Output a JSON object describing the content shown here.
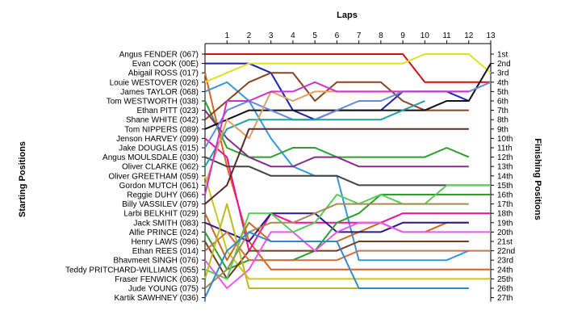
{
  "chart_data": {
    "type": "line",
    "title": "",
    "xlabel": "Laps",
    "ylabel_left": "Starting Positions",
    "ylabel_right": "Finishing Positions",
    "laps": [
      0,
      1,
      2,
      3,
      4,
      5,
      6,
      7,
      8,
      9,
      10,
      11,
      12,
      13
    ],
    "lap_labels": [
      "1",
      "2",
      "3",
      "4",
      "5",
      "6",
      "7",
      "8",
      "9",
      "10",
      "11",
      "12",
      "13"
    ],
    "finishing_labels": [
      "1st",
      "2nd",
      "3rd",
      "4th",
      "5th",
      "6th",
      "7th",
      "8th",
      "9th",
      "10th",
      "11th",
      "12th",
      "13th",
      "14th",
      "15th",
      "16th",
      "17th",
      "18th",
      "19th",
      "20th",
      "21st",
      "22nd",
      "23rd",
      "24th",
      "25th",
      "26th",
      "27th"
    ],
    "series": [
      {
        "name": "Angus FENDER (067)",
        "color": "#d01010",
        "positions": [
          1,
          1,
          1,
          1,
          1,
          1,
          1,
          1,
          1,
          1,
          4,
          4,
          4,
          4
        ]
      },
      {
        "name": "Evan COOK (00E)",
        "color": "#1f1fb0",
        "positions": [
          2,
          2,
          2,
          3,
          7,
          8,
          7,
          7,
          7,
          5,
          5,
          5,
          6,
          null
        ]
      },
      {
        "name": "Abigail ROSS (017)",
        "color": "#e06020",
        "positions": [
          3,
          13,
          21,
          24,
          24,
          24,
          24,
          24,
          24,
          24,
          24,
          24,
          24,
          24
        ]
      },
      {
        "name": "Louie WESTOVER (026)",
        "color": "#e0e020",
        "positions": [
          4,
          3,
          2,
          2,
          2,
          2,
          2,
          2,
          2,
          2,
          1,
          1,
          1,
          3
        ]
      },
      {
        "name": "James TAYLOR (068)",
        "color": "#3399dd",
        "positions": [
          5,
          4,
          6,
          10,
          13,
          14,
          14,
          23,
          23,
          23,
          23,
          23,
          22,
          null
        ]
      },
      {
        "name": "Tom WESTWORTH (038)",
        "color": "#2aa02a",
        "positions": [
          6,
          11,
          12,
          12,
          11,
          11,
          12,
          12,
          12,
          12,
          12,
          11,
          12,
          null
        ]
      },
      {
        "name": "Ethan PITT (023)",
        "color": "#8a2a8a",
        "positions": [
          7,
          10,
          12,
          13,
          13,
          12,
          12,
          13,
          13,
          13,
          13,
          13,
          13,
          null
        ]
      },
      {
        "name": "Shane WHITE (042)",
        "color": "#884422",
        "positions": [
          8,
          6,
          4,
          3,
          3,
          6,
          4,
          4,
          4,
          6,
          7,
          7,
          7,
          null
        ]
      },
      {
        "name": "Tom NIPPERS (089)",
        "color": "#111111",
        "positions": [
          9,
          8,
          7,
          7,
          7,
          7,
          7,
          7,
          7,
          7,
          7,
          6,
          6,
          2
        ]
      },
      {
        "name": "Jenson HARVEY (099)",
        "color": "#ee1199",
        "positions": [
          10,
          12,
          22,
          18,
          19,
          19,
          19,
          19,
          19,
          18,
          18,
          18,
          18,
          18
        ]
      },
      {
        "name": "Jake DOUGLAS (015)",
        "color": "#6688dd",
        "positions": [
          11,
          7,
          6,
          7,
          8,
          8,
          7,
          6,
          6,
          5,
          5,
          5,
          5,
          4
        ]
      },
      {
        "name": "Angus MOULSDALE (030)",
        "color": "#444444",
        "positions": [
          12,
          13,
          13,
          14,
          14,
          14,
          14,
          15,
          15,
          15,
          15,
          15,
          15,
          15
        ]
      },
      {
        "name": "Oliver CLARKE (062)",
        "color": "#20a0a0",
        "positions": [
          13,
          9,
          8,
          8,
          8,
          8,
          8,
          8,
          8,
          7,
          6,
          null,
          null,
          null
        ]
      },
      {
        "name": "Oliver GREETHAM (059)",
        "color": "#c8c820",
        "positions": [
          14,
          22,
          25,
          25,
          25,
          25,
          25,
          25,
          25,
          25,
          25,
          25,
          25,
          25
        ]
      },
      {
        "name": "Gordon MUTCH (061)",
        "color": "#e0a060",
        "positions": [
          15,
          8,
          10,
          5,
          6,
          5,
          5,
          5,
          5,
          5,
          5,
          5,
          5,
          null
        ]
      },
      {
        "name": "Reggie DUHY (066)",
        "color": "#cc33cc",
        "positions": [
          16,
          6,
          6,
          5,
          5,
          4,
          5,
          5,
          5,
          5,
          5,
          5,
          5,
          null
        ]
      },
      {
        "name": "Billy VASSILEV (079)",
        "color": "#5a2a2a",
        "positions": [
          17,
          15,
          9,
          9,
          9,
          9,
          9,
          9,
          9,
          9,
          9,
          9,
          9,
          null
        ]
      },
      {
        "name": "Larbi BELKHIT (029)",
        "color": "#c86a20",
        "positions": [
          18,
          23,
          19,
          21,
          21,
          21,
          21,
          20,
          19,
          20,
          20,
          19,
          19,
          null
        ]
      },
      {
        "name": "Jack SMITH (083)",
        "color": "#2a1a8a",
        "positions": [
          19,
          20,
          21,
          18,
          18,
          18,
          20,
          20,
          20,
          19,
          19,
          19,
          19,
          null
        ]
      },
      {
        "name": "Alfie PRINCE (024)",
        "color": "#2aa02a",
        "positions": [
          20,
          24,
          23,
          23,
          23,
          22,
          19,
          18,
          16,
          16,
          16,
          16,
          16,
          16
        ]
      },
      {
        "name": "Henry LAWS (096)",
        "color": "#7a3a1a",
        "positions": [
          21,
          25,
          22,
          22,
          22,
          22,
          22,
          21,
          21,
          21,
          21,
          21,
          21,
          null
        ]
      },
      {
        "name": "Ethan REES (014)",
        "color": "#d07040",
        "positions": [
          22,
          20,
          23,
          23,
          23,
          23,
          23,
          22,
          22,
          22,
          22,
          22,
          22,
          22
        ]
      },
      {
        "name": "Bhavmeet SINGH (076)",
        "color": "#ee55ee",
        "positions": [
          23,
          26,
          24,
          20,
          20,
          22,
          20,
          19,
          19,
          20,
          20,
          20,
          20,
          20
        ]
      },
      {
        "name": "Teddy PRITCHARD-WILLIAMS (055)",
        "color": "#55cc55",
        "positions": [
          24,
          25,
          18,
          18,
          20,
          19,
          16,
          17,
          16,
          17,
          17,
          15,
          15,
          15
        ]
      },
      {
        "name": "Fraser FENWICK (063)",
        "color": "#bbbb20",
        "positions": [
          25,
          17,
          26,
          26,
          26,
          26,
          26,
          26,
          26,
          26,
          26,
          26,
          26,
          null
        ]
      },
      {
        "name": "Jude YOUNG (075)",
        "color": "#aa8855",
        "positions": [
          26,
          24,
          20,
          19,
          19,
          18,
          17,
          17,
          17,
          17,
          17,
          17,
          17,
          null
        ]
      },
      {
        "name": "Kartik SAWHNEY (036)",
        "color": "#3388cc",
        "positions": [
          27,
          22,
          20,
          21,
          21,
          21,
          21,
          26,
          26,
          26,
          26,
          26,
          26,
          null
        ]
      }
    ]
  }
}
